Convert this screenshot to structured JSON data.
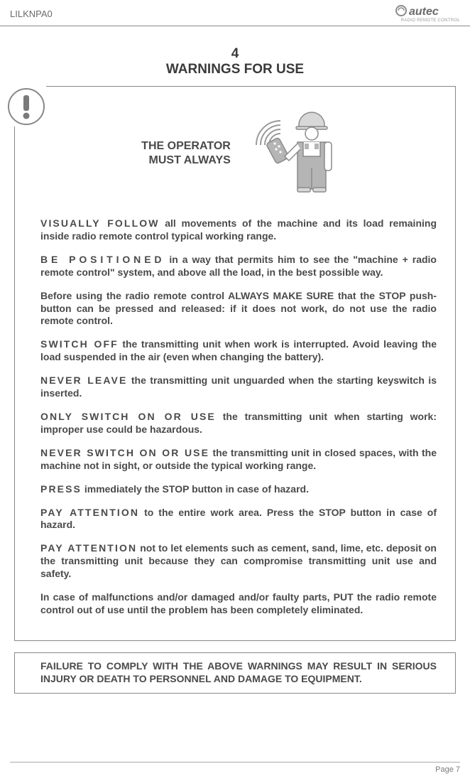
{
  "header": {
    "doc_id": "LILKNPA0",
    "brand_name": "autec",
    "brand_sub": "RADIO REMOTE CONTROL"
  },
  "title": {
    "section_num": "4",
    "section_title": "WARNINGS FOR USE"
  },
  "operator": {
    "line1": "THE OPERATOR",
    "line2": "MUST ALWAYS"
  },
  "paragraphs": [
    {
      "lead": "VISUALLY FOLLOW",
      "lead_class": "",
      "rest": " all movements of the machine and its load remaining inside radio remote control typical working range."
    },
    {
      "lead": "BE POSITIONED",
      "lead_class": "lead-wide",
      "rest": " in a way that permits him to see the \"machine + radio remote control\" system, and above all the load, in the best possible way."
    },
    {
      "lead": "",
      "lead_class": "",
      "rest": "Before using the radio remote control ALWAYS MAKE SURE that the STOP push-button can be pressed and released: if it does not work, do not use the radio remote control."
    },
    {
      "lead": "SWITCH OFF",
      "lead_class": "",
      "rest": " the transmitting unit when work is interrupted. Avoid leaving the load suspended in the air (even when changing the battery)."
    },
    {
      "lead": "NEVER LEAVE",
      "lead_class": "",
      "rest": " the transmitting unit unguarded when the starting keyswitch is inserted."
    },
    {
      "lead": "ONLY SWITCH ON OR USE",
      "lead_class": "",
      "rest": " the transmitting unit when starting work: improper use could be hazardous."
    },
    {
      "lead": "NEVER SWITCH ON OR USE",
      "lead_class": "",
      "rest": " the transmitting unit in closed spaces, with the machine not in sight, or outside the typical working range."
    },
    {
      "lead": "PRESS",
      "lead_class": "",
      "rest": " immediately the STOP button in case of hazard."
    },
    {
      "lead": "PAY ATTENTION",
      "lead_class": "",
      "rest": " to the entire work area. Press the STOP button in case of hazard."
    },
    {
      "lead": "PAY ATTENTION",
      "lead_class": "",
      "rest": " not to let elements such as cement, sand, lime, etc. deposit on the transmitting unit because they can compromise transmitting unit use and safety."
    },
    {
      "lead": "",
      "lead_class": "",
      "rest": "In case of malfunctions and/or damaged and/or faulty parts, PUT the radio remote control out of use until the problem has been completely eliminated."
    }
  ],
  "footer_warning": "FAILURE TO COMPLY WITH THE ABOVE WARNINGS MAY RESULT IN SERIOUS INJURY OR DEATH TO PERSONNEL AND DAMAGE TO EQUIPMENT.",
  "page_number": "Page 7",
  "colors": {
    "text": "#4a4a4a",
    "border": "#888888",
    "bg": "#ffffff",
    "icon_stroke": "#8a8a8a",
    "icon_fill": "#b0b0b0"
  }
}
